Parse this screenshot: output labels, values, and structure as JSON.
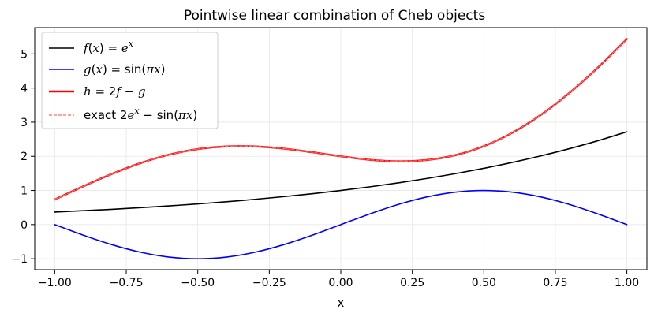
{
  "chart_data": {
    "type": "line",
    "title": "Pointwise linear combination of Cheb objects",
    "xlabel": "x",
    "ylabel": "",
    "xlim": [
      -1.07,
      1.07
    ],
    "ylim": [
      -1.32,
      5.77
    ],
    "xticks": [
      -1.0,
      -0.75,
      -0.5,
      -0.25,
      0.0,
      0.25,
      0.5,
      0.75,
      1.0
    ],
    "xtick_labels": [
      "−1.00",
      "−0.75",
      "−0.50",
      "−0.25",
      "0.00",
      "0.25",
      "0.50",
      "0.75",
      "1.00"
    ],
    "yticks": [
      -1,
      0,
      1,
      2,
      3,
      4,
      5
    ],
    "ytick_labels": [
      "−1",
      "0",
      "1",
      "2",
      "3",
      "4",
      "5"
    ],
    "grid": true,
    "legend_position": "upper-left",
    "x": [
      -1.0,
      -0.9,
      -0.8,
      -0.7,
      -0.6,
      -0.5,
      -0.4,
      -0.3,
      -0.2,
      -0.1,
      0.0,
      0.1,
      0.2,
      0.3,
      0.4,
      0.5,
      0.6,
      0.7,
      0.8,
      0.9,
      1.0
    ],
    "series": [
      {
        "key": "f",
        "name": "f(x) = e^x",
        "color": "#000000",
        "style": "solid",
        "values": [
          0.368,
          0.407,
          0.449,
          0.497,
          0.549,
          0.607,
          0.67,
          0.741,
          0.819,
          0.905,
          1.0,
          1.105,
          1.221,
          1.35,
          1.492,
          1.649,
          1.822,
          2.014,
          2.226,
          2.46,
          2.718
        ]
      },
      {
        "key": "g",
        "name": "g(x) = sin(πx)",
        "color": "#0000ff",
        "style": "solid",
        "values": [
          0.0,
          -0.309,
          -0.588,
          -0.809,
          -0.951,
          -1.0,
          -0.951,
          -0.809,
          -0.588,
          -0.309,
          0.0,
          0.309,
          0.588,
          0.809,
          0.951,
          1.0,
          0.951,
          0.809,
          0.588,
          0.309,
          0.0
        ]
      },
      {
        "key": "h",
        "name": "h = 2f − g",
        "color": "#ff0000",
        "style": "solid-thick",
        "values": [
          0.736,
          1.122,
          1.487,
          1.802,
          2.049,
          2.213,
          2.291,
          2.29,
          2.226,
          2.119,
          2.0,
          1.901,
          1.855,
          1.891,
          2.033,
          2.297,
          2.693,
          3.218,
          3.863,
          4.61,
          5.437
        ]
      },
      {
        "key": "exact",
        "name": "exact 2e^x − sin(πx)",
        "color": "#ff6b6b",
        "style": "dashed",
        "values": [
          0.736,
          1.122,
          1.487,
          1.802,
          2.049,
          2.213,
          2.291,
          2.29,
          2.226,
          2.119,
          2.0,
          1.901,
          1.855,
          1.891,
          2.033,
          2.297,
          2.693,
          3.218,
          3.863,
          4.61,
          5.437
        ]
      }
    ],
    "legend": {
      "f": {
        "fn": "f",
        "arg": "x",
        "rhs": "e",
        "sup": "x"
      },
      "g": {
        "fn": "g",
        "arg": "x",
        "rhs_pre": "sin(",
        "rhs_var": "πx",
        "rhs_post": ")"
      },
      "h": {
        "lhs": "h",
        "mid": " = 2",
        "v1": "f",
        "op": " − ",
        "v2": "g"
      },
      "exact": {
        "pre": "exact 2",
        "base": "e",
        "sup": "x",
        "post_pre": " − sin(",
        "post_var": "πx",
        "post_post": ")"
      }
    }
  }
}
